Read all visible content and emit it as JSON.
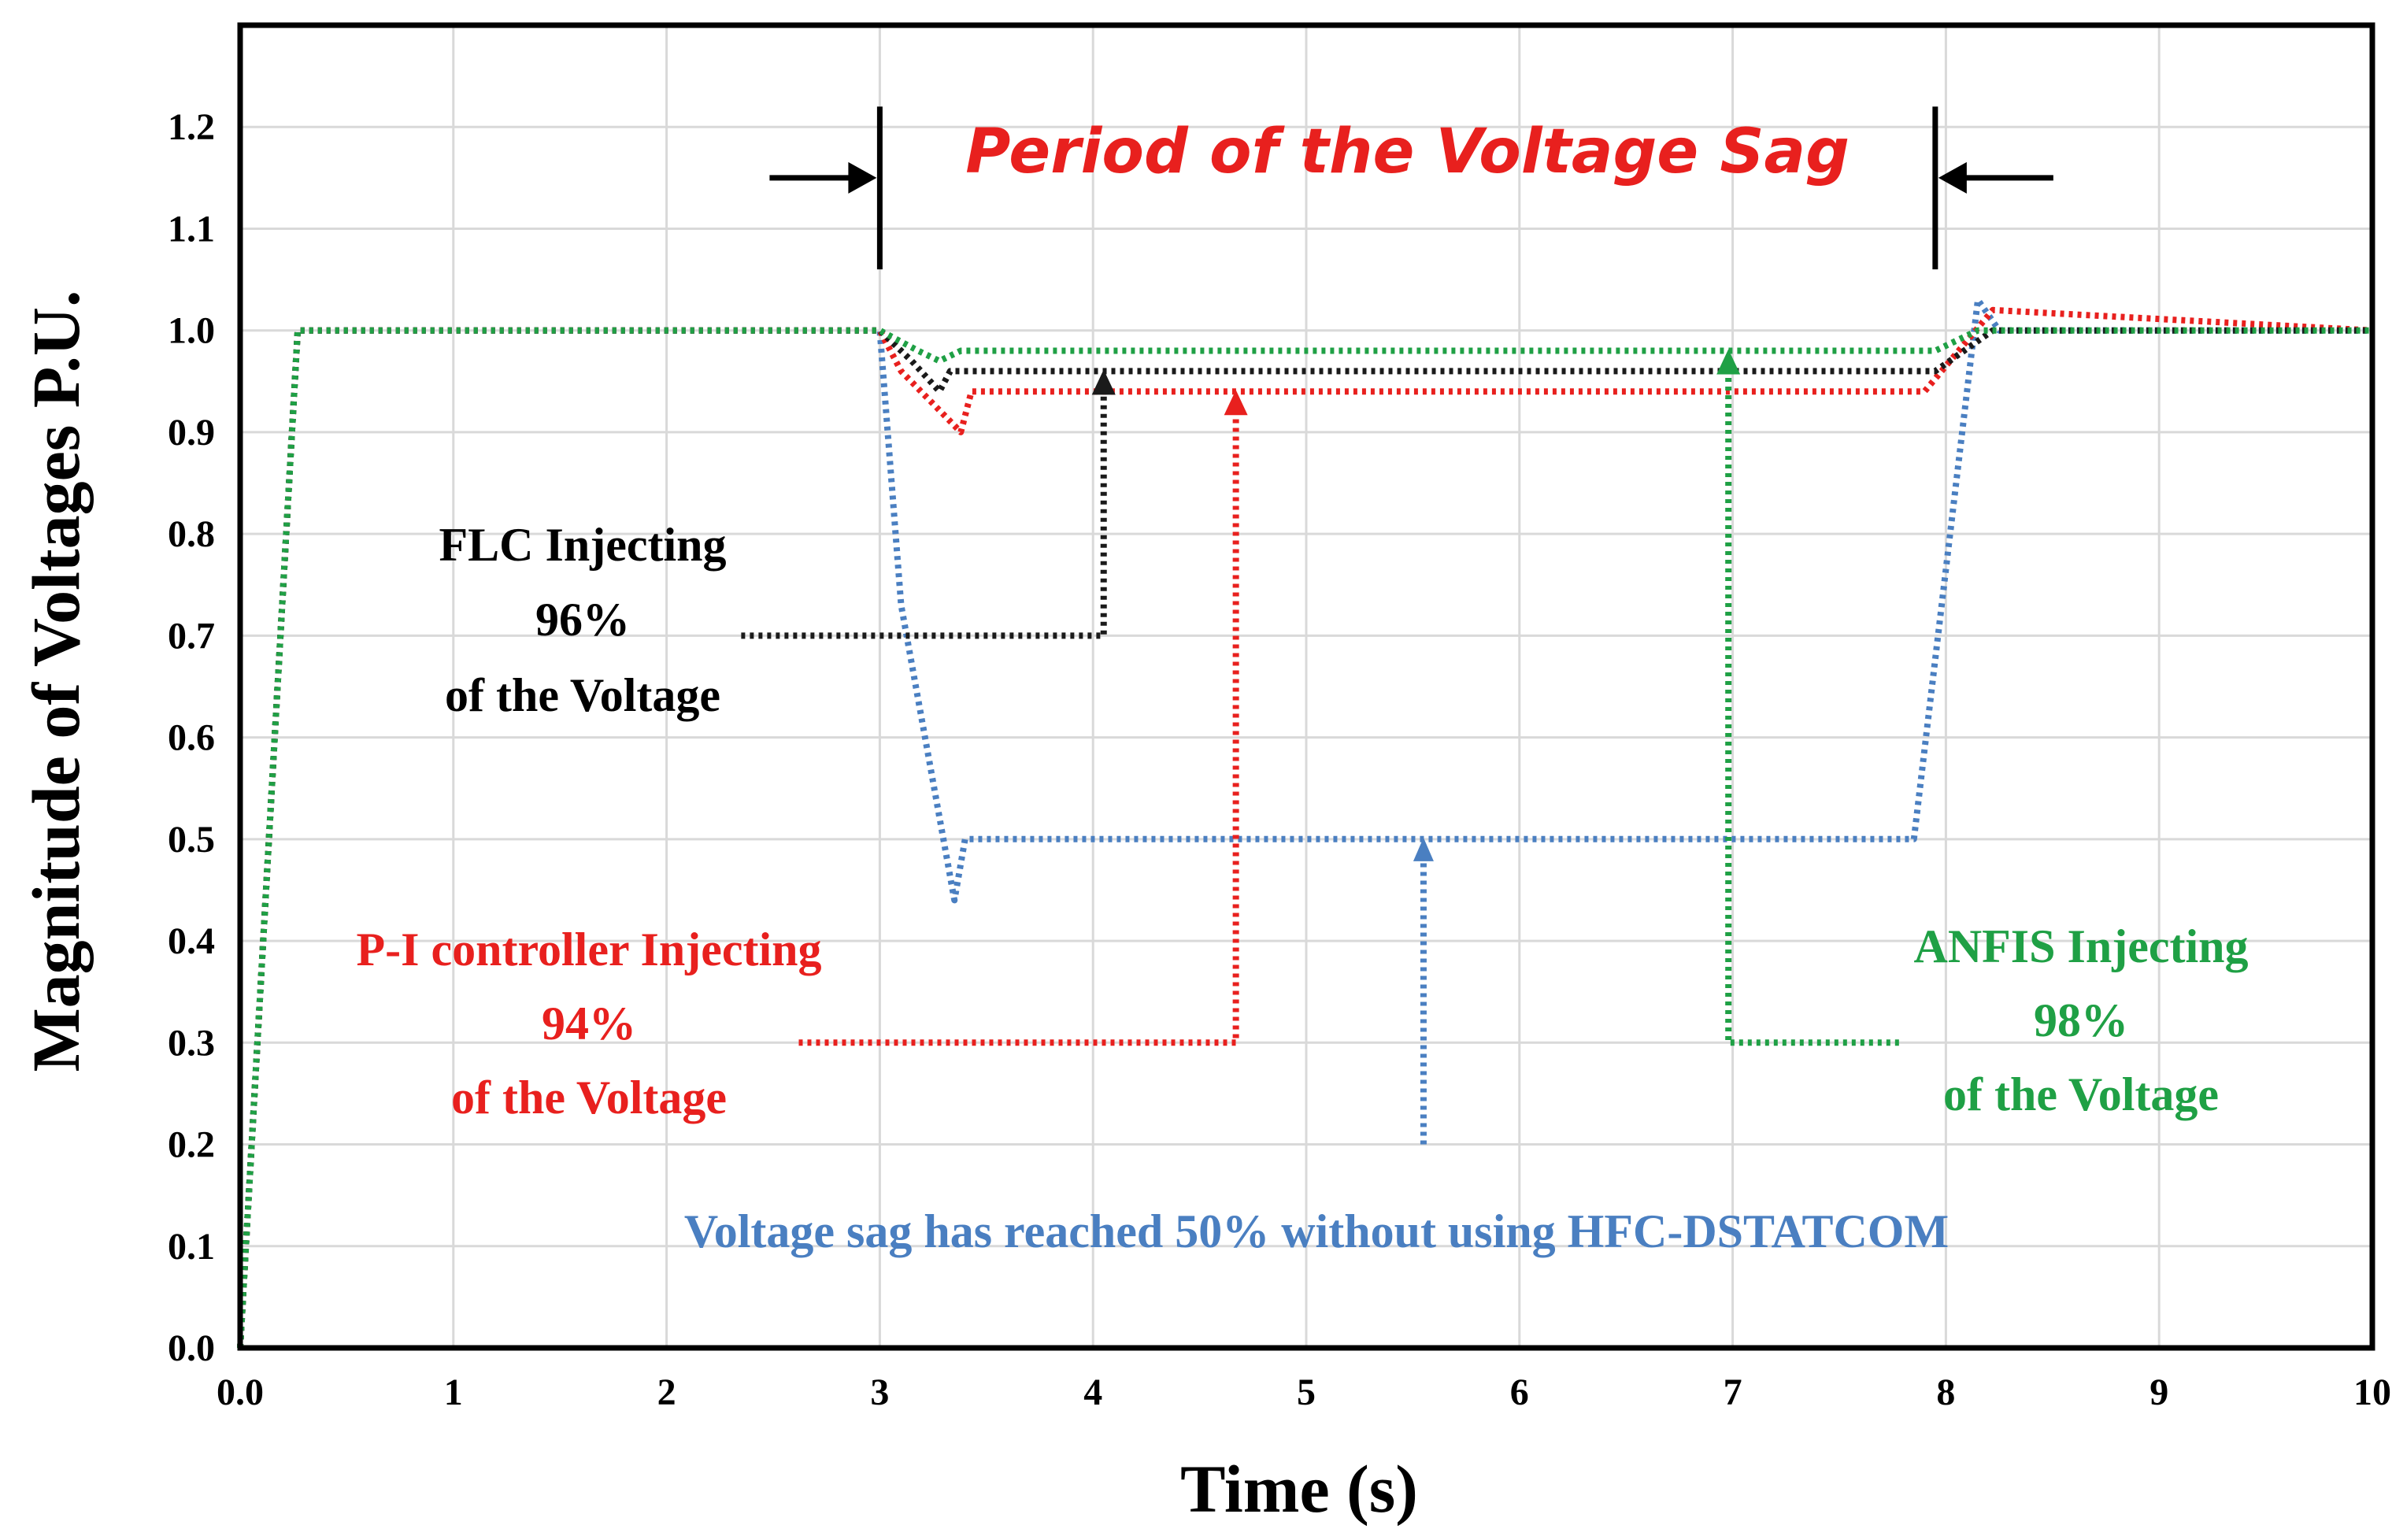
{
  "chart_data": {
    "type": "line",
    "title": "Period of the Voltage Sag",
    "xlabel": "Time (s)",
    "ylabel": "Magnitude of Voltages P.U.",
    "xlim": [
      0,
      10
    ],
    "ylim": [
      0,
      1.3
    ],
    "grid": true,
    "x_ticks": [
      {
        "value": 0,
        "label": "0.0"
      },
      {
        "value": 1,
        "label": "1"
      },
      {
        "value": 2,
        "label": "2"
      },
      {
        "value": 3,
        "label": "3"
      },
      {
        "value": 4,
        "label": "4"
      },
      {
        "value": 5,
        "label": "5"
      },
      {
        "value": 6,
        "label": "6"
      },
      {
        "value": 7,
        "label": "7"
      },
      {
        "value": 8,
        "label": "8"
      },
      {
        "value": 9,
        "label": "9"
      },
      {
        "value": 10,
        "label": "10"
      }
    ],
    "y_ticks": [
      {
        "value": 0.0,
        "label": "0.0"
      },
      {
        "value": 0.1,
        "label": "0.1"
      },
      {
        "value": 0.2,
        "label": "0.2"
      },
      {
        "value": 0.3,
        "label": "0.3"
      },
      {
        "value": 0.4,
        "label": "0.4"
      },
      {
        "value": 0.5,
        "label": "0.5"
      },
      {
        "value": 0.6,
        "label": "0.6"
      },
      {
        "value": 0.7,
        "label": "0.7"
      },
      {
        "value": 0.8,
        "label": "0.8"
      },
      {
        "value": 0.9,
        "label": "0.9"
      },
      {
        "value": 1.0,
        "label": "1.0"
      },
      {
        "value": 1.1,
        "label": "1.1"
      },
      {
        "value": 1.2,
        "label": "1.2"
      }
    ],
    "sag_period": {
      "start": 3.0,
      "end": 7.95,
      "label": "Period of the Voltage Sag",
      "color": "#e8201e"
    },
    "series": [
      {
        "name": "Without HFC-DSTATCOM",
        "color": "#4a7fc1",
        "x": [
          0,
          0.27,
          3.0,
          3.1,
          3.35,
          3.4,
          7.85,
          8.15,
          8.25,
          10
        ],
        "y": [
          0,
          1.0,
          1.0,
          0.73,
          0.44,
          0.5,
          0.5,
          1.03,
          1.0,
          1.0
        ]
      },
      {
        "name": "P-I controller",
        "color": "#e8201e",
        "x": [
          0,
          0.27,
          3.0,
          3.1,
          3.38,
          3.43,
          7.9,
          8.22,
          10
        ],
        "y": [
          0,
          1.0,
          1.0,
          0.96,
          0.9,
          0.94,
          0.94,
          1.02,
          1.0
        ]
      },
      {
        "name": "FLC",
        "color": "#1a1a1a",
        "x": [
          0,
          0.27,
          3.0,
          3.15,
          3.28,
          3.33,
          7.95,
          8.22,
          10
        ],
        "y": [
          0,
          1.0,
          1.0,
          0.97,
          0.94,
          0.96,
          0.96,
          1.0,
          1.0
        ]
      },
      {
        "name": "ANFIS",
        "color": "#1fa045",
        "x": [
          0,
          0.27,
          3.0,
          3.18,
          3.28,
          3.38,
          7.95,
          8.15,
          8.25,
          10
        ],
        "y": [
          0,
          1.0,
          1.0,
          0.98,
          0.97,
          0.98,
          0.98,
          1.0,
          1.0,
          1.0
        ]
      }
    ],
    "annotations": [
      {
        "name": "flc",
        "color": "#000000",
        "lines": [
          "FLC Injecting",
          "96%",
          "of the Voltage"
        ],
        "pointer_value": 0.96
      },
      {
        "name": "pi",
        "color": "#e8201e",
        "lines": [
          "P-I controller Injecting",
          "94%",
          "of the Voltage"
        ],
        "pointer_value": 0.94
      },
      {
        "name": "anfis",
        "color": "#1fa045",
        "lines": [
          "ANFIS Injecting",
          "98%",
          "of the Voltage"
        ],
        "pointer_value": 0.98
      },
      {
        "name": "sag",
        "color": "#4a7fc1",
        "lines": [
          "Voltage sag has reached 50% without using HFC-DSTATCOM"
        ],
        "pointer_value": 0.5
      }
    ]
  }
}
